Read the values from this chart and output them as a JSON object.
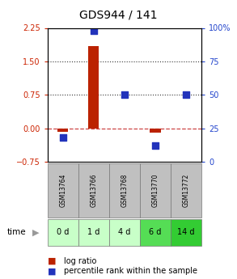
{
  "title": "GDS944 / 141",
  "samples": [
    "GSM13764",
    "GSM13766",
    "GSM13768",
    "GSM13770",
    "GSM13772"
  ],
  "time_labels": [
    "0 d",
    "1 d",
    "4 d",
    "6 d",
    "14 d"
  ],
  "log_ratio": [
    -0.08,
    1.85,
    0.0,
    -0.1,
    0.0
  ],
  "percentile": [
    18,
    98,
    50,
    12,
    50
  ],
  "ylim_left": [
    -0.75,
    2.25
  ],
  "ylim_right": [
    0,
    100
  ],
  "yticks_left": [
    -0.75,
    0,
    0.75,
    1.5,
    2.25
  ],
  "yticks_right": [
    0,
    25,
    50,
    75,
    100
  ],
  "hlines_dotted": [
    0.75,
    1.5
  ],
  "zero_line_value": 0,
  "bar_color": "#bb2200",
  "scatter_color": "#2233bb",
  "zero_line_color": "#cc4444",
  "dot_line_color": "#333333",
  "sample_bg": "#c0c0c0",
  "time_bg_colors": [
    "#c8ffc8",
    "#c8ffc8",
    "#c8ffc8",
    "#55dd55",
    "#33cc33"
  ],
  "bar_width": 0.35,
  "scatter_size": 30,
  "title_fontsize": 10,
  "tick_fontsize": 7,
  "legend_fontsize": 7,
  "left_tick_color": "#cc2200",
  "right_tick_color": "#2244cc"
}
